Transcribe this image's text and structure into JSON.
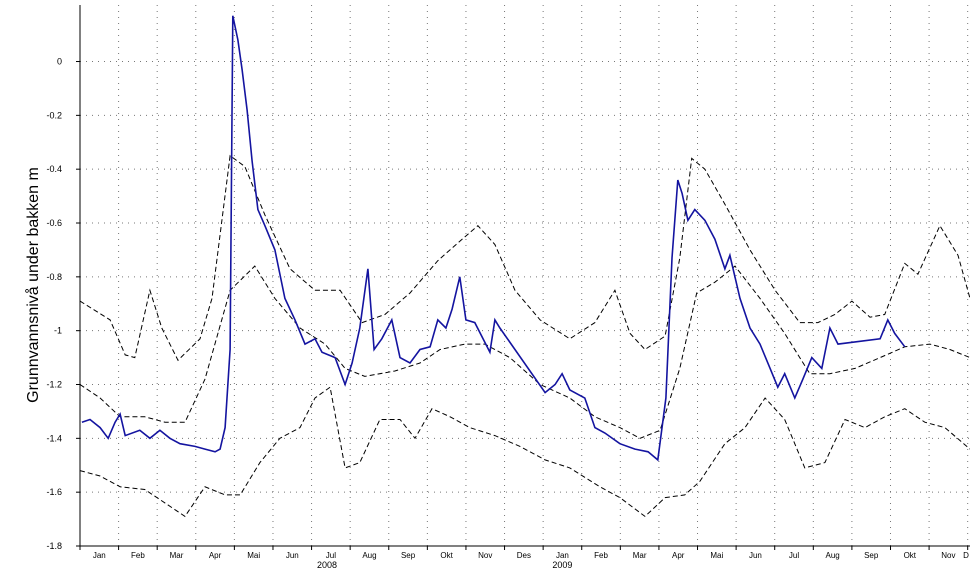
{
  "chart_data": {
    "type": "line",
    "y_label": "Grunnvannsnivå under bakken m",
    "ylim": [
      -1.8,
      0.21
    ],
    "yticks": [
      0,
      -0.2,
      -0.4,
      -0.6,
      -0.8,
      -1,
      -1.2,
      -1.4,
      -1.6,
      -1.8
    ],
    "xlim": [
      0,
      23.06
    ],
    "xticks": [
      {
        "value": 0,
        "label": "Jan"
      },
      {
        "value": 1,
        "label": "Feb"
      },
      {
        "value": 2,
        "label": "Mar"
      },
      {
        "value": 3,
        "label": "Apr"
      },
      {
        "value": 4,
        "label": "Mai"
      },
      {
        "value": 5,
        "label": "Jun"
      },
      {
        "value": 6,
        "label": "Jul"
      },
      {
        "value": 7,
        "label": "Aug"
      },
      {
        "value": 8,
        "label": "Sep"
      },
      {
        "value": 9,
        "label": "Okt"
      },
      {
        "value": 10,
        "label": "Nov"
      },
      {
        "value": 11,
        "label": "Des"
      },
      {
        "value": 12,
        "label": "Jan"
      },
      {
        "value": 13,
        "label": "Feb"
      },
      {
        "value": 14,
        "label": "Mar"
      },
      {
        "value": 15,
        "label": "Apr"
      },
      {
        "value": 16,
        "label": "Mai"
      },
      {
        "value": 17,
        "label": "Jun"
      },
      {
        "value": 18,
        "label": "Jul"
      },
      {
        "value": 19,
        "label": "Aug"
      },
      {
        "value": 20,
        "label": "Sep"
      },
      {
        "value": 21,
        "label": "Okt"
      },
      {
        "value": 22,
        "label": "Nov"
      },
      {
        "value": 23,
        "label": "D"
      }
    ],
    "years": [
      {
        "value": 6.4,
        "label": "2008"
      },
      {
        "value": 12.5,
        "label": "2009"
      }
    ],
    "grid": true,
    "series": [
      {
        "color": "#000000",
        "dash": true,
        "x": [
          0,
          0.78,
          1.17,
          1.42,
          1.81,
          2.12,
          2.54,
          3.11,
          3.42,
          3.89,
          4.27,
          4.79,
          5.44,
          6.09,
          6.74,
          7.31,
          7.9,
          8.55,
          9.27,
          9.9,
          10.31,
          10.75,
          11.27,
          11.92,
          12.69,
          13.34,
          13.86,
          14.25,
          14.64,
          15.16,
          15.54,
          15.85,
          16.19,
          16.71,
          17.36,
          18.01,
          18.65,
          19.12,
          19.56,
          20.0,
          20.47,
          20.85,
          21.37,
          21.71,
          22.28,
          22.75,
          23.06
        ],
        "values": [
          -0.89,
          -0.96,
          -1.09,
          -1.1,
          -0.85,
          -0.99,
          -1.11,
          -1.03,
          -0.88,
          -0.35,
          -0.39,
          -0.57,
          -0.77,
          -0.85,
          -0.85,
          -0.97,
          -0.94,
          -0.86,
          -0.74,
          -0.66,
          -0.61,
          -0.68,
          -0.85,
          -0.96,
          -1.03,
          -0.97,
          -0.85,
          -1.01,
          -1.07,
          -1.02,
          -0.73,
          -0.36,
          -0.4,
          -0.53,
          -0.7,
          -0.85,
          -0.97,
          -0.97,
          -0.94,
          -0.89,
          -0.95,
          -0.94,
          -0.75,
          -0.79,
          -0.61,
          -0.72,
          -0.88
        ]
      },
      {
        "color": "#000000",
        "dash": true,
        "x": [
          0,
          0.52,
          1.04,
          1.68,
          2.2,
          2.72,
          3.24,
          3.89,
          4.53,
          5.05,
          5.7,
          6.35,
          6.87,
          7.38,
          8.16,
          8.81,
          9.33,
          9.97,
          10.49,
          11.14,
          11.92,
          12.69,
          13.34,
          13.99,
          14.51,
          15.03,
          15.54,
          15.98,
          16.45,
          16.97,
          17.62,
          18.26,
          18.91,
          19.43,
          20.08,
          20.73,
          21.37,
          22.02,
          22.54,
          23.06
        ],
        "values": [
          -1.2,
          -1.25,
          -1.32,
          -1.32,
          -1.34,
          -1.34,
          -1.18,
          -0.85,
          -0.76,
          -0.88,
          -0.99,
          -1.05,
          -1.14,
          -1.17,
          -1.15,
          -1.12,
          -1.07,
          -1.05,
          -1.05,
          -1.1,
          -1.2,
          -1.25,
          -1.32,
          -1.36,
          -1.4,
          -1.37,
          -1.14,
          -0.86,
          -0.82,
          -0.76,
          -0.88,
          -1.01,
          -1.16,
          -1.16,
          -1.14,
          -1.1,
          -1.06,
          -1.05,
          -1.07,
          -1.1
        ]
      },
      {
        "color": "#000000",
        "dash": true,
        "x": [
          0,
          0.52,
          1.04,
          1.68,
          2.2,
          2.72,
          3.24,
          3.76,
          4.15,
          4.66,
          5.18,
          5.7,
          6.09,
          6.48,
          6.87,
          7.25,
          7.77,
          8.29,
          8.68,
          9.12,
          9.59,
          10.1,
          10.75,
          11.4,
          12.05,
          12.69,
          13.47,
          13.99,
          14.64,
          15.16,
          15.67,
          16.06,
          16.71,
          17.23,
          17.75,
          18.26,
          18.78,
          19.3,
          19.82,
          20.34,
          20.85,
          21.37,
          21.89,
          22.41,
          23.06
        ],
        "values": [
          -1.52,
          -1.54,
          -1.58,
          -1.59,
          -1.64,
          -1.69,
          -1.58,
          -1.61,
          -1.61,
          -1.49,
          -1.4,
          -1.36,
          -1.25,
          -1.21,
          -1.51,
          -1.49,
          -1.33,
          -1.33,
          -1.4,
          -1.29,
          -1.32,
          -1.36,
          -1.39,
          -1.43,
          -1.48,
          -1.51,
          -1.58,
          -1.62,
          -1.69,
          -1.62,
          -1.61,
          -1.56,
          -1.42,
          -1.36,
          -1.25,
          -1.33,
          -1.51,
          -1.49,
          -1.33,
          -1.36,
          -1.32,
          -1.29,
          -1.34,
          -1.36,
          -1.44
        ]
      },
      {
        "color": "#1414a0",
        "dash": false,
        "x": [
          0.05,
          0.26,
          0.52,
          0.73,
          0.91,
          1.04,
          1.17,
          1.55,
          1.81,
          2.07,
          2.33,
          2.59,
          2.98,
          3.24,
          3.5,
          3.63,
          3.76,
          3.89,
          3.96,
          4.09,
          4.2,
          4.33,
          4.46,
          4.61,
          4.79,
          5.05,
          5.31,
          5.57,
          5.83,
          6.09,
          6.27,
          6.61,
          6.87,
          7.05,
          7.25,
          7.46,
          7.62,
          7.82,
          8.08,
          8.29,
          8.55,
          8.81,
          9.07,
          9.27,
          9.48,
          9.64,
          9.84,
          10.0,
          10.23,
          10.62,
          10.75,
          10.88,
          12.05,
          12.31,
          12.49,
          12.69,
          13.08,
          13.34,
          13.6,
          13.99,
          14.38,
          14.72,
          14.97,
          15.18,
          15.34,
          15.49,
          15.6,
          15.75,
          15.93,
          16.19,
          16.45,
          16.71,
          16.84,
          17.1,
          17.36,
          17.62,
          17.88,
          18.08,
          18.26,
          18.52,
          18.73,
          18.96,
          19.22,
          19.43,
          19.64,
          20.73,
          20.93,
          21.11,
          21.37
        ],
        "values": [
          -1.34,
          -1.33,
          -1.36,
          -1.4,
          -1.34,
          -1.31,
          -1.39,
          -1.37,
          -1.4,
          -1.37,
          -1.4,
          -1.42,
          -1.43,
          -1.44,
          -1.45,
          -1.44,
          -1.36,
          -1.07,
          0.17,
          0.08,
          -0.03,
          -0.18,
          -0.37,
          -0.55,
          -0.61,
          -0.7,
          -0.88,
          -0.96,
          -1.05,
          -1.03,
          -1.08,
          -1.1,
          -1.2,
          -1.12,
          -0.99,
          -0.77,
          -1.07,
          -1.03,
          -0.96,
          -1.1,
          -1.12,
          -1.07,
          -1.06,
          -0.96,
          -0.99,
          -0.92,
          -0.8,
          -0.96,
          -0.97,
          -1.08,
          -0.96,
          -0.99,
          -1.23,
          -1.2,
          -1.16,
          -1.22,
          -1.25,
          -1.36,
          -1.38,
          -1.42,
          -1.44,
          -1.45,
          -1.48,
          -1.25,
          -0.73,
          -0.44,
          -0.49,
          -0.59,
          -0.55,
          -0.59,
          -0.66,
          -0.77,
          -0.72,
          -0.88,
          -0.99,
          -1.05,
          -1.14,
          -1.21,
          -1.16,
          -1.25,
          -1.18,
          -1.1,
          -1.14,
          -0.99,
          -1.05,
          -1.03,
          -0.96,
          -1.01,
          -1.06
        ]
      }
    ]
  }
}
